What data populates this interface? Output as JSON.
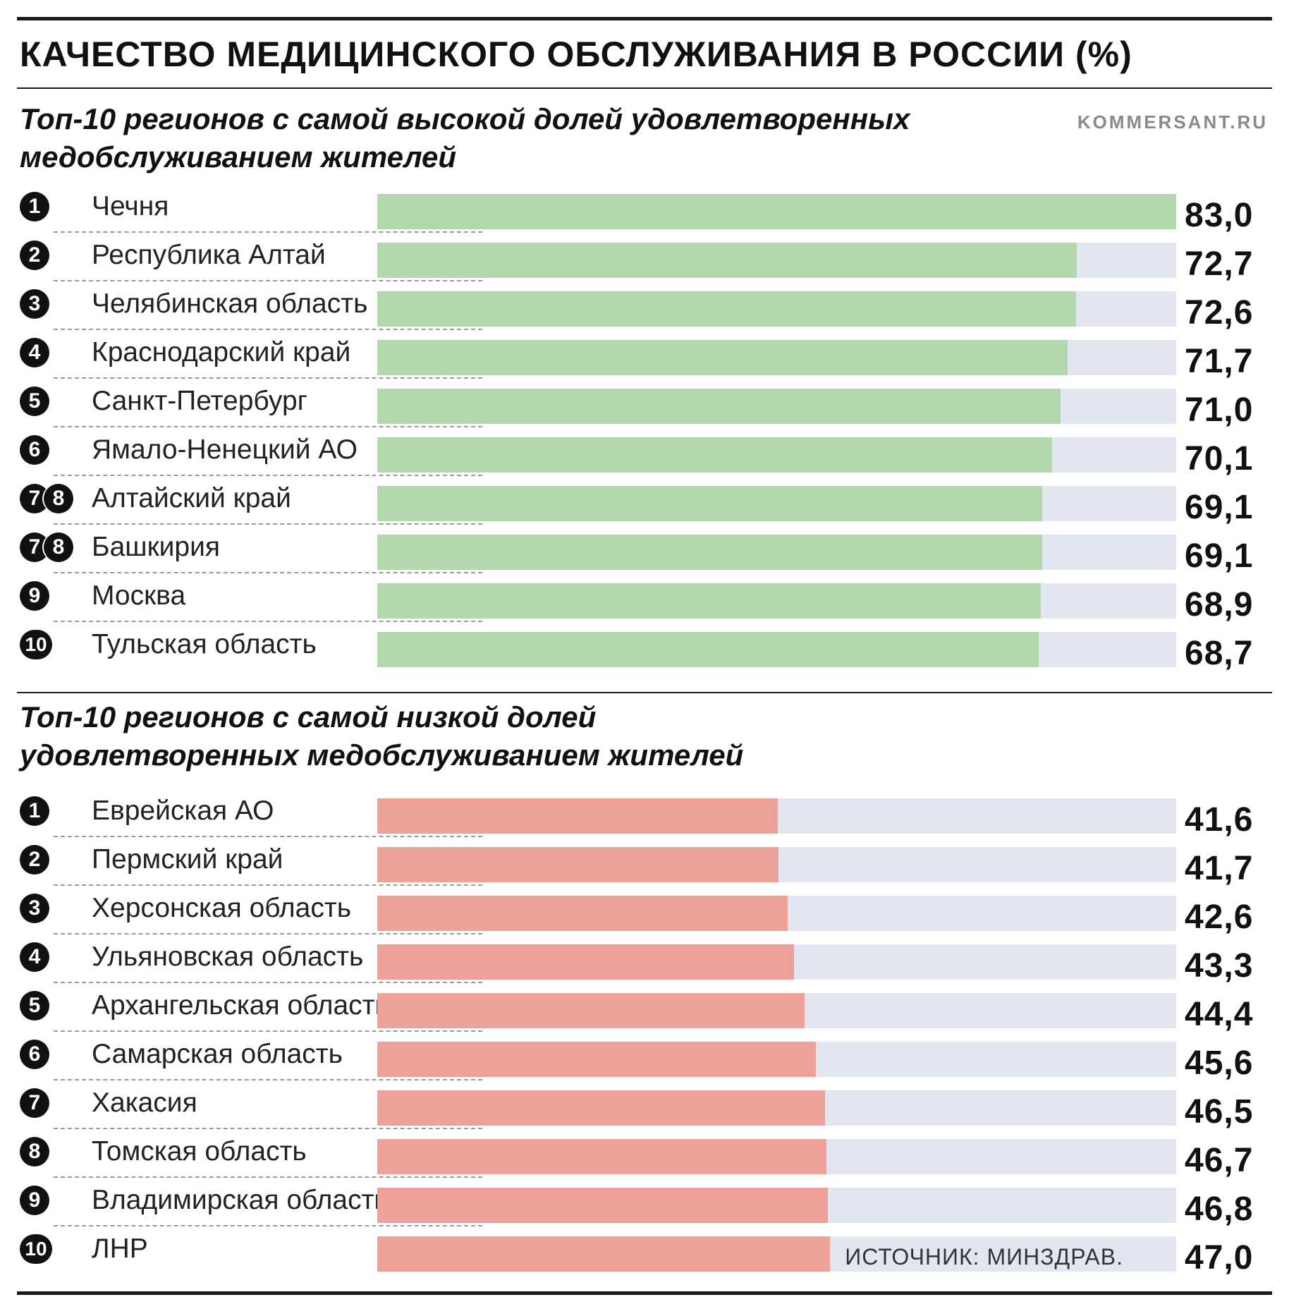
{
  "title": "КАЧЕСТВО МЕДИЦИНСКОГО ОБСЛУЖИВАНИЯ В РОССИИ (%)",
  "source_site": "KOMMERSANT.RU",
  "source_note": "ИСТОЧНИК: МИНЗДРАВ.",
  "colors": {
    "high": "#b3d8ae",
    "low": "#eea196",
    "track": "#e2e6f0"
  },
  "chart_data": [
    {
      "type": "bar",
      "title": "Топ-10 регионов с самой высокой долей удовлетворенных медобслуживанием жителей",
      "ylim": [
        0,
        83
      ],
      "ranks": [
        [
          "1"
        ],
        [
          "2"
        ],
        [
          "3"
        ],
        [
          "4"
        ],
        [
          "5"
        ],
        [
          "6"
        ],
        [
          "7",
          "8"
        ],
        [
          "7",
          "8"
        ],
        [
          "9"
        ],
        [
          "10"
        ]
      ],
      "categories": [
        "Чечня",
        "Республика Алтай",
        "Челябинская область",
        "Краснодарский край",
        "Санкт-Петербург",
        "Ямало-Ненецкий АО",
        "Алтайский край",
        "Башкирия",
        "Москва",
        "Тульская область"
      ],
      "values": [
        83.0,
        72.7,
        72.6,
        71.7,
        71.0,
        70.1,
        69.1,
        69.1,
        68.9,
        68.7
      ],
      "value_labels": [
        "83,0",
        "72,7",
        "72,6",
        "71,7",
        "71,0",
        "70,1",
        "69,1",
        "69,1",
        "68,9",
        "68,7"
      ]
    },
    {
      "type": "bar",
      "title": "Топ-10 регионов с самой низкой долей удовлетворенных медобслуживанием жителей",
      "ylim": [
        0,
        83
      ],
      "ranks": [
        [
          "1"
        ],
        [
          "2"
        ],
        [
          "3"
        ],
        [
          "4"
        ],
        [
          "5"
        ],
        [
          "6"
        ],
        [
          "7"
        ],
        [
          "8"
        ],
        [
          "9"
        ],
        [
          "10"
        ]
      ],
      "categories": [
        "Еврейская АО",
        "Пермский край",
        "Херсонская область",
        "Ульяновская область",
        "Архангельская область",
        "Самарская область",
        "Хакасия",
        "Томская область",
        "Владимирская область",
        "ЛНР"
      ],
      "values": [
        41.6,
        41.7,
        42.6,
        43.3,
        44.4,
        45.6,
        46.5,
        46.7,
        46.8,
        47.0
      ],
      "value_labels": [
        "41,6",
        "41,7",
        "42,6",
        "43,3",
        "44,4",
        "45,6",
        "46,5",
        "46,7",
        "46,8",
        "47,0"
      ]
    }
  ]
}
